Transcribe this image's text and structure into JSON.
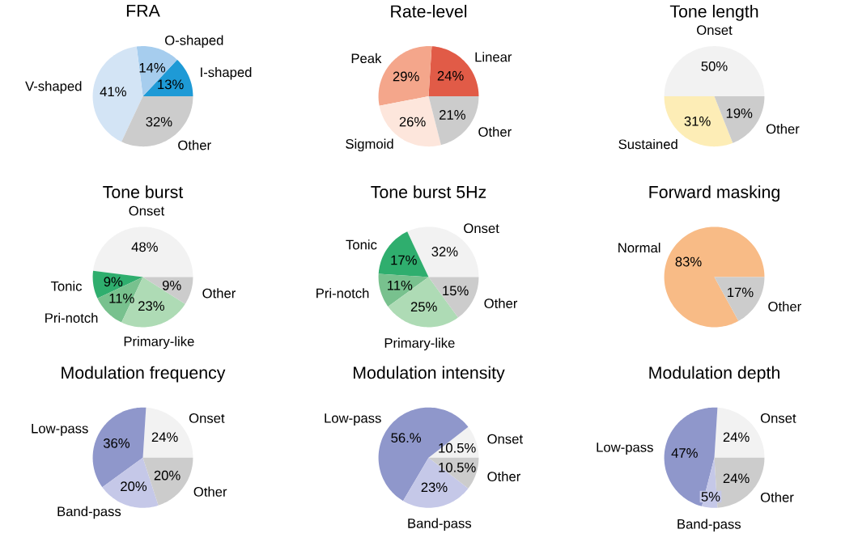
{
  "chart_data": [
    {
      "type": "pie",
      "title": "FRA",
      "categories": [
        "I-shaped",
        "O-shaped",
        "V-shaped",
        "Other"
      ],
      "values": [
        13,
        14,
        41,
        32
      ],
      "value_labels": [
        "13%",
        "14%",
        "41%",
        "32%"
      ],
      "colors": [
        "#1e9ad6",
        "#a6cdee",
        "#d3e4f5",
        "#cccccc"
      ]
    },
    {
      "type": "pie",
      "title": "Rate-level",
      "categories": [
        "Linear",
        "Peak",
        "Sigmoid",
        "Other"
      ],
      "values": [
        24,
        29,
        26,
        21
      ],
      "value_labels": [
        "24%",
        "29%",
        "26%",
        "21%"
      ],
      "colors": [
        "#e15b47",
        "#f4a68b",
        "#fde6dc",
        "#cccccc"
      ]
    },
    {
      "type": "pie",
      "title": "Tone length",
      "categories": [
        "Onset",
        "Sustained",
        "Other"
      ],
      "values": [
        50,
        31,
        19
      ],
      "value_labels": [
        "50%",
        "31%",
        "19%"
      ],
      "colors": [
        "#f2f2f2",
        "#fdedb6",
        "#cccccc"
      ]
    },
    {
      "type": "pie",
      "title": "Tone burst",
      "categories": [
        "Onset",
        "Tonic",
        "Pri-notch",
        "Primary-like",
        "Other"
      ],
      "values": [
        48,
        9,
        11,
        23,
        9
      ],
      "value_labels": [
        "48%",
        "9%",
        "11%",
        "23%",
        "9%"
      ],
      "colors": [
        "#f2f2f2",
        "#2fae6e",
        "#78c18e",
        "#aedbb5",
        "#cccccc"
      ]
    },
    {
      "type": "pie",
      "title": "Tone burst 5Hz",
      "categories": [
        "Onset",
        "Tonic",
        "Pri-notch",
        "Primary-like",
        "Other"
      ],
      "values": [
        32,
        17,
        11,
        25,
        15
      ],
      "value_labels": [
        "32%",
        "17%",
        "11%",
        "25%",
        "15%"
      ],
      "colors": [
        "#f2f2f2",
        "#2fae6e",
        "#78c18e",
        "#aedbb5",
        "#cccccc"
      ]
    },
    {
      "type": "pie",
      "title": "Forward masking",
      "categories": [
        "Normal",
        "Other"
      ],
      "values": [
        83,
        17
      ],
      "value_labels": [
        "83%",
        "17%"
      ],
      "colors": [
        "#f8bb86",
        "#cccccc"
      ]
    },
    {
      "type": "pie",
      "title": "Modulation frequency",
      "categories": [
        "Onset",
        "Low-pass",
        "Band-pass",
        "Other"
      ],
      "values": [
        24,
        36,
        20,
        20
      ],
      "value_labels": [
        "24%",
        "36%",
        "20%",
        "20%"
      ],
      "colors": [
        "#f2f2f2",
        "#8f97cb",
        "#c5c8e8",
        "#cccccc"
      ]
    },
    {
      "type": "pie",
      "title": "Modulation intensity",
      "categories": [
        "Onset",
        "Low-pass",
        "Band-pass",
        "Other"
      ],
      "values": [
        10.5,
        56,
        23,
        10.5
      ],
      "value_labels": [
        "10.5%",
        "56.%",
        "23%",
        "10.5%"
      ],
      "colors": [
        "#f2f2f2",
        "#8f97cb",
        "#c5c8e8",
        "#cccccc"
      ]
    },
    {
      "type": "pie",
      "title": "Modulation depth",
      "categories": [
        "Onset",
        "Low-pass",
        "Band-pass",
        "Other"
      ],
      "values": [
        24,
        47,
        5,
        24
      ],
      "value_labels": [
        "24%",
        "47%",
        "5%",
        "24%"
      ],
      "colors": [
        "#f2f2f2",
        "#8f97cb",
        "#c5c8e8",
        "#cccccc"
      ]
    }
  ]
}
